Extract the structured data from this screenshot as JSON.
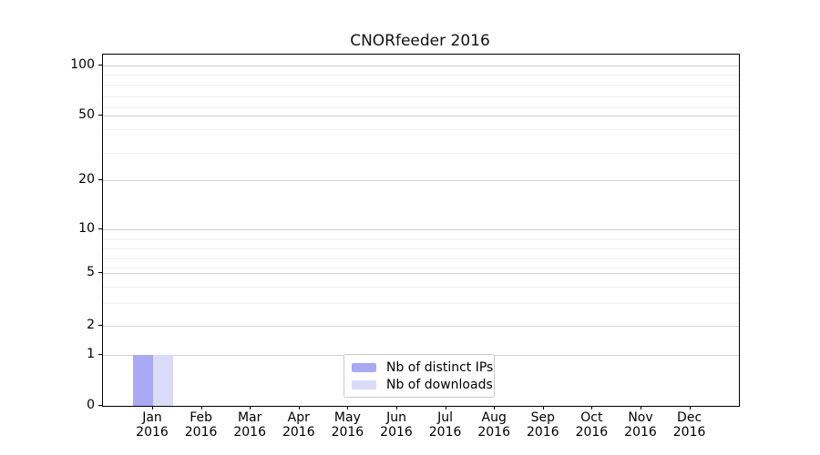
{
  "chart_data": {
    "type": "bar",
    "title": "CNORfeeder 2016",
    "xlabel": "",
    "ylabel": "",
    "year_label": "2016",
    "categories": [
      "Jan",
      "Feb",
      "Mar",
      "Apr",
      "May",
      "Jun",
      "Jul",
      "Aug",
      "Sep",
      "Oct",
      "Nov",
      "Dec"
    ],
    "series": [
      {
        "name": "Nb of distinct IPs",
        "color": "#a9a9f4",
        "values": [
          1,
          0,
          0,
          0,
          0,
          0,
          0,
          0,
          0,
          0,
          0,
          0
        ]
      },
      {
        "name": "Nb of downloads",
        "color": "#dbdbf8",
        "values": [
          1,
          0,
          0,
          0,
          0,
          0,
          0,
          0,
          0,
          0,
          0,
          0
        ]
      }
    ],
    "yscale": "log above 1, linear 0-1 (symlog)",
    "ylim": [
      0,
      100
    ],
    "yticks_major": [
      0,
      1,
      2,
      5,
      10,
      20,
      50,
      100
    ],
    "yticks_minor": [
      3,
      4,
      6,
      7,
      8,
      9,
      30,
      40,
      60,
      70,
      80,
      90
    ],
    "grid": "horizontal only",
    "legend_position": "inside bottom-center"
  },
  "colors": {
    "background": "#ffffff",
    "spine": "#000000",
    "grid_major": "#d2d2d2",
    "grid_minor": "#efefef",
    "legend_border": "#c9c9c9",
    "text": "#000000"
  }
}
